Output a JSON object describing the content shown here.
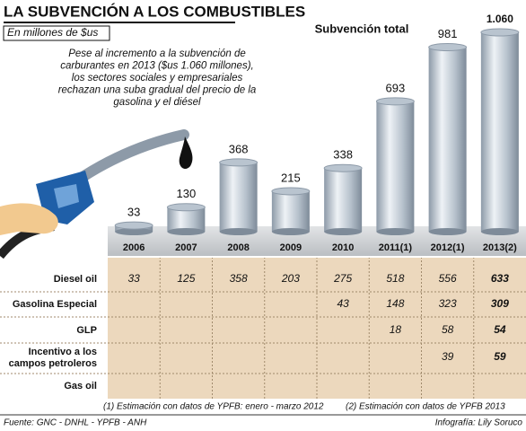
{
  "chart_data": {
    "type": "bar",
    "title": "LA SUBVENCIÓN A LOS COMBUSTIBLES",
    "subtitle": "En millones de $us",
    "series_label": "Subvención total",
    "description": [
      "Pese al incremento a la subvención de",
      "carburantes en 2013 ($us 1.060 millones),",
      "los sectores sociales y empresariales",
      "rechazan una suba gradual del precio de la",
      "gasolina y el diésel"
    ],
    "categories": [
      "2006",
      "2007",
      "2008",
      "2009",
      "2010",
      "2011(1)",
      "2012(1)",
      "2013(2)"
    ],
    "values": [
      33,
      130,
      368,
      215,
      338,
      693,
      981,
      1060
    ],
    "value_labels": [
      "33",
      "130",
      "368",
      "215",
      "338",
      "693",
      "981",
      "1.060"
    ],
    "color": "#b9c4cf",
    "table": {
      "rows": [
        {
          "label": "Diesel oil",
          "values": [
            33,
            125,
            358,
            203,
            275,
            518,
            556,
            633
          ]
        },
        {
          "label": "Gasolina Especial",
          "values": [
            null,
            null,
            null,
            null,
            43,
            148,
            323,
            309
          ]
        },
        {
          "label": "GLP",
          "values": [
            null,
            null,
            null,
            null,
            null,
            18,
            58,
            54
          ]
        },
        {
          "label": "Incentivo a los campos petroleros",
          "values": [
            null,
            null,
            null,
            null,
            null,
            null,
            39,
            59
          ]
        },
        {
          "label": "Gas oil",
          "values": [
            null,
            null,
            null,
            null,
            null,
            null,
            null,
            null
          ]
        }
      ]
    },
    "footnotes": [
      "(1) Estimación con datos de YPFB: enero - marzo 2012",
      "(2) Estimación con datos de YPFB 2013"
    ],
    "source": "Fuente: GNC - DNHL - YPFB - ANH",
    "credit": "Infografía: Lily Soruco"
  }
}
